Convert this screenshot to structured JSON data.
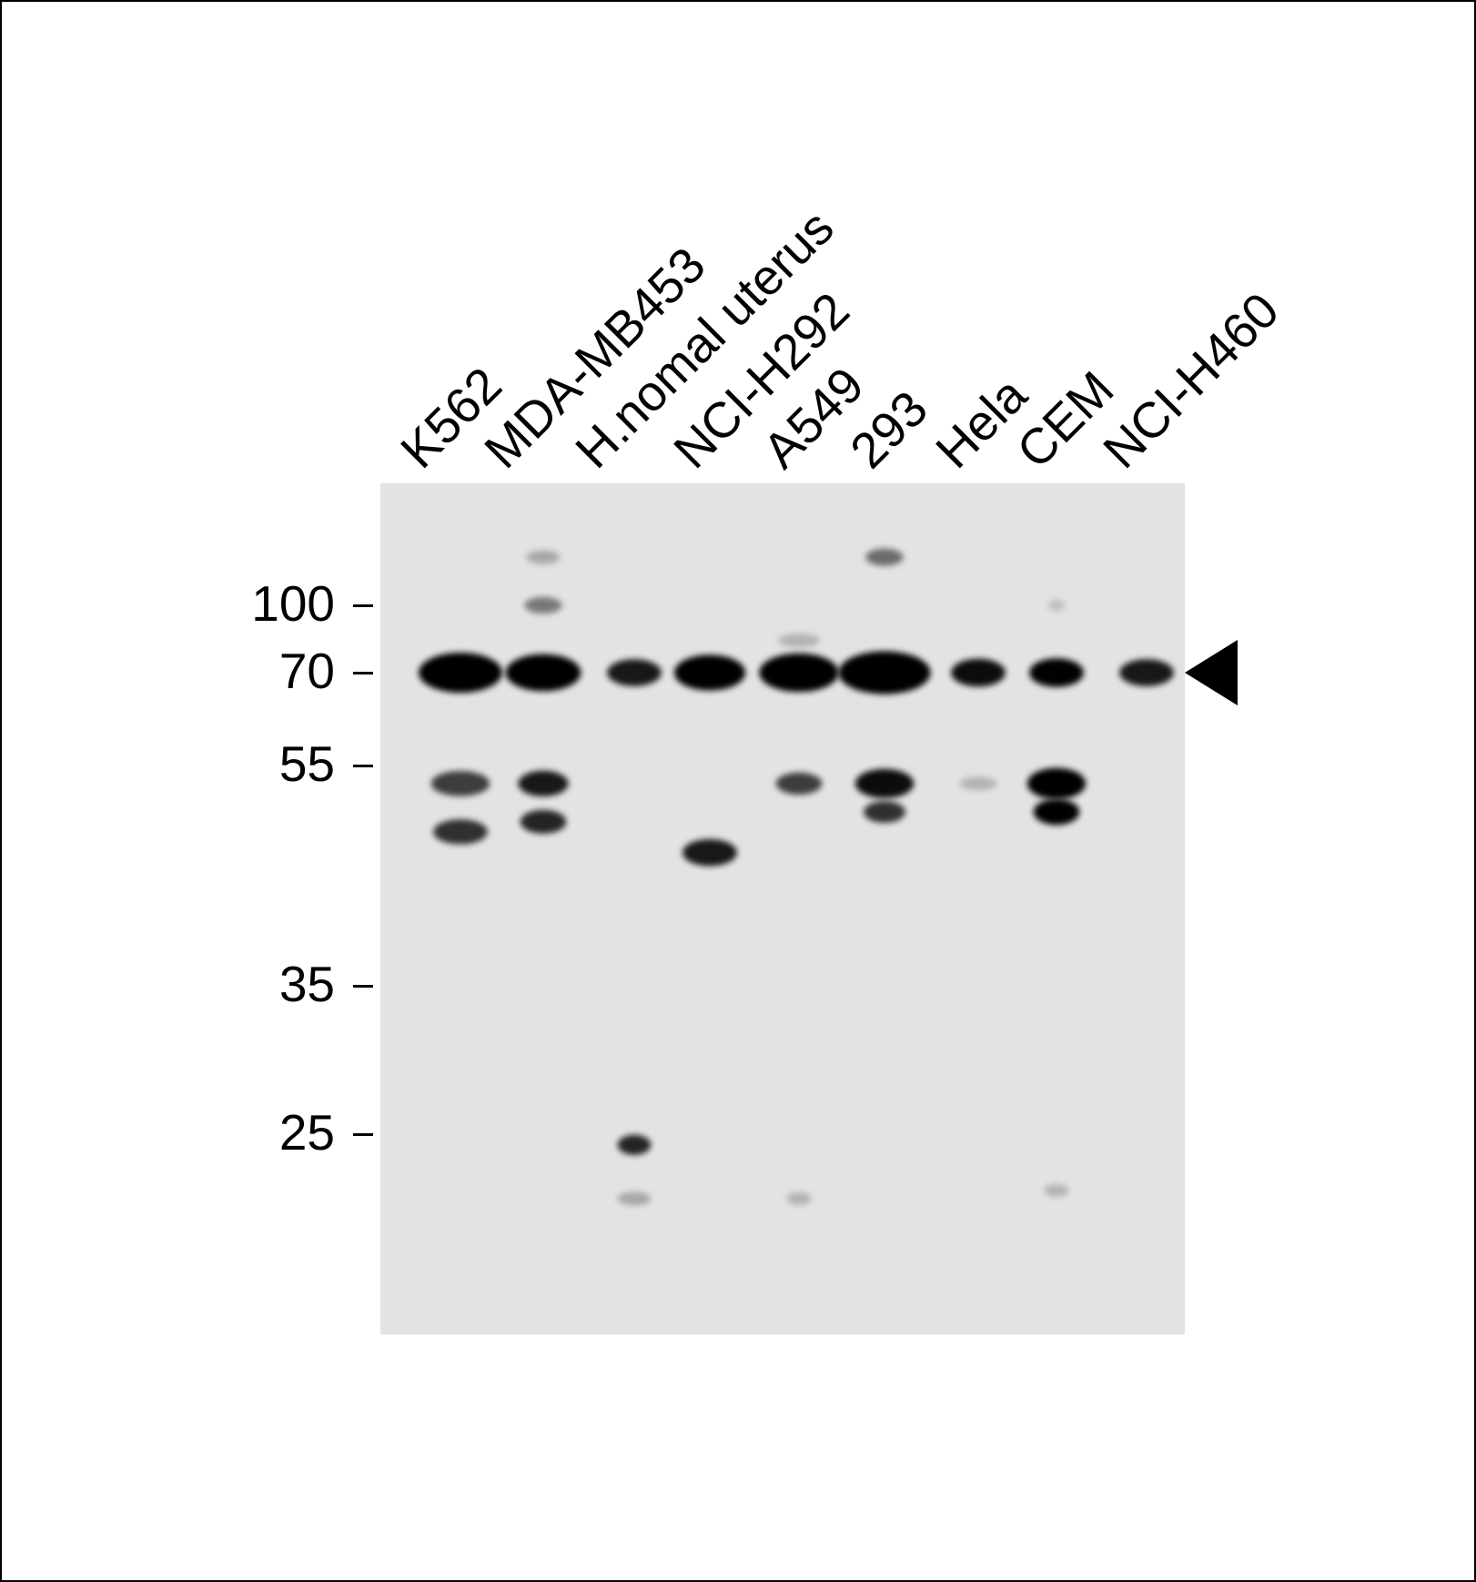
{
  "lanes": [
    "K562",
    "MDA-MB453",
    "H.nomal uterus",
    "NCI-H292",
    "A549",
    "293",
    "Hela",
    "CEM",
    "NCI-H460"
  ],
  "markers": [
    "100",
    "70",
    "55",
    "35",
    "25"
  ],
  "target_arrow": {
    "mw_kda": 70,
    "icon": "left-pointing-triangle"
  },
  "bands": [
    {
      "lane": 0,
      "mw": 70,
      "intensity": 1.0,
      "width": 1.0
    },
    {
      "lane": 0,
      "mw": 53,
      "intensity": 0.7,
      "width": 0.7
    },
    {
      "lane": 0,
      "mw": 48,
      "intensity": 0.75,
      "width": 0.65
    },
    {
      "lane": 1,
      "mw": 129,
      "intensity": 0.25,
      "width": 0.4
    },
    {
      "lane": 1,
      "mw": 100,
      "intensity": 0.45,
      "width": 0.45
    },
    {
      "lane": 1,
      "mw": 70,
      "intensity": 1.0,
      "width": 0.9
    },
    {
      "lane": 1,
      "mw": 53,
      "intensity": 0.85,
      "width": 0.6
    },
    {
      "lane": 1,
      "mw": 49,
      "intensity": 0.8,
      "width": 0.55
    },
    {
      "lane": 2,
      "mw": 70,
      "intensity": 0.85,
      "width": 0.65
    },
    {
      "lane": 2,
      "mw": 24.4,
      "intensity": 0.8,
      "width": 0.4
    },
    {
      "lane": 2,
      "mw": 21.6,
      "intensity": 0.25,
      "width": 0.4
    },
    {
      "lane": 3,
      "mw": 70,
      "intensity": 1.0,
      "width": 0.85
    },
    {
      "lane": 3,
      "mw": 46,
      "intensity": 0.85,
      "width": 0.65
    },
    {
      "lane": 4,
      "mw": 83,
      "intensity": 0.2,
      "width": 0.5
    },
    {
      "lane": 4,
      "mw": 70,
      "intensity": 1.0,
      "width": 0.95
    },
    {
      "lane": 4,
      "mw": 53,
      "intensity": 0.7,
      "width": 0.55
    },
    {
      "lane": 4,
      "mw": 21.6,
      "intensity": 0.2,
      "width": 0.3
    },
    {
      "lane": 5,
      "mw": 129,
      "intensity": 0.5,
      "width": 0.45
    },
    {
      "lane": 5,
      "mw": 70,
      "intensity": 1.0,
      "width": 1.1
    },
    {
      "lane": 5,
      "mw": 53,
      "intensity": 0.9,
      "width": 0.7
    },
    {
      "lane": 5,
      "mw": 50,
      "intensity": 0.75,
      "width": 0.5
    },
    {
      "lane": 6,
      "mw": 70,
      "intensity": 0.9,
      "width": 0.65
    },
    {
      "lane": 6,
      "mw": 53,
      "intensity": 0.2,
      "width": 0.45
    },
    {
      "lane": 7,
      "mw": 100,
      "intensity": 0.15,
      "width": 0.2
    },
    {
      "lane": 7,
      "mw": 70,
      "intensity": 0.95,
      "width": 0.65
    },
    {
      "lane": 7,
      "mw": 53,
      "intensity": 1.0,
      "width": 0.7
    },
    {
      "lane": 7,
      "mw": 50,
      "intensity": 0.95,
      "width": 0.55
    },
    {
      "lane": 7,
      "mw": 22,
      "intensity": 0.2,
      "width": 0.3
    },
    {
      "lane": 8,
      "mw": 70,
      "intensity": 0.85,
      "width": 0.65
    }
  ]
}
